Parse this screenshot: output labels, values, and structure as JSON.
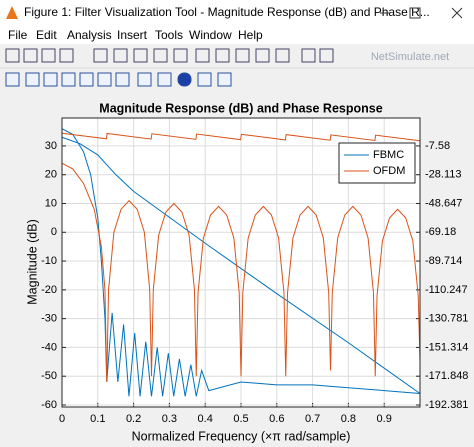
{
  "window": {
    "title": "Figure 1: Filter Visualization Tool - Magnitude Response (dB) and Phase R...",
    "menu": [
      "File",
      "Edit",
      "Analysis",
      "Insert",
      "Tools",
      "Window",
      "Help"
    ],
    "watermark": "NetSimulate.net"
  },
  "chart_data": {
    "type": "line",
    "title": "Magnitude Response (dB) and Phase Response",
    "xlabel": "Normalized Frequency (×π rad/sample)",
    "ylabel": "Magnitude (dB)",
    "xlim": [
      0,
      1
    ],
    "xticks": [
      0,
      0.1,
      0.2,
      0.3,
      0.4,
      0.5,
      0.6,
      0.7,
      0.8,
      0.9
    ],
    "ylim": [
      -60.7,
      39.7
    ],
    "yticks": [
      30,
      20,
      10,
      0,
      -10,
      -20,
      -30,
      -40,
      -50,
      -60
    ],
    "y2lim": [
      -193.82,
      12.34
    ],
    "y2ticks": [
      -7.58,
      -28.113,
      -48.647,
      -69.18,
      -89.714,
      -110.247,
      -130.781,
      -151.314,
      -171.848,
      -192.381
    ],
    "grid": true,
    "legend": "upper right",
    "series": [
      {
        "name": "FBMC",
        "color": "#0072bd",
        "x": [
          0,
          0.03,
          0.06,
          0.08,
          0.1,
          0.11,
          0.12,
          0.125,
          0.14,
          0.156,
          0.172,
          0.187,
          0.203,
          0.218,
          0.234,
          0.25,
          0.266,
          0.281,
          0.297,
          0.312,
          0.328,
          0.344,
          0.36,
          0.375,
          0.39,
          0.41,
          0.5,
          0.6,
          0.7,
          0.8,
          0.9,
          1
        ],
        "values": [
          36,
          34,
          28,
          20,
          5,
          -10,
          -30,
          -52,
          -28,
          -52,
          -32,
          -57,
          -35,
          -57,
          -38,
          -57,
          -40,
          -57,
          -42,
          -57,
          -44,
          -57,
          -46,
          -57,
          -48,
          -55,
          -52,
          -53,
          -53,
          -54,
          -55,
          -56
        ],
        "phase_x": [
          0,
          0.05,
          0.1,
          0.15,
          0.2,
          0.4,
          0.6,
          0.8,
          1
        ],
        "phase_values": [
          -1.4,
          -6,
          -14,
          -28,
          -40,
          -77,
          -113,
          -148,
          -184.2
        ]
      },
      {
        "name": "OFDM",
        "color": "#d95319",
        "x": [
          0,
          0.03,
          0.06,
          0.09,
          0.11,
          0.12,
          0.125,
          0.13,
          0.145,
          0.165,
          0.1875,
          0.21,
          0.23,
          0.245,
          0.25,
          0.255,
          0.27,
          0.29,
          0.3125,
          0.335,
          0.355,
          0.37,
          0.375,
          0.38,
          0.395,
          0.415,
          0.4375,
          0.46,
          0.48,
          0.495,
          0.5,
          0.505,
          0.52,
          0.54,
          0.5625,
          0.585,
          0.605,
          0.62,
          0.625,
          0.63,
          0.645,
          0.665,
          0.6875,
          0.71,
          0.73,
          0.745,
          0.75,
          0.755,
          0.77,
          0.79,
          0.8125,
          0.835,
          0.855,
          0.87,
          0.875,
          0.88,
          0.895,
          0.915,
          0.9375,
          0.96,
          0.98,
          0.995,
          1
        ],
        "values": [
          24,
          22,
          17,
          8,
          -5,
          -20,
          -52,
          -20,
          0,
          8,
          11,
          8,
          0,
          -20,
          -50,
          -20,
          -1,
          7,
          10,
          7,
          -1,
          -20,
          -50,
          -21,
          -2,
          6,
          9,
          6,
          -2,
          -21,
          -50,
          -21,
          -2,
          6,
          9,
          6,
          -2,
          -21,
          -50,
          -21,
          -2,
          6,
          9,
          6,
          -2,
          -21,
          -48,
          -21,
          -2,
          6,
          9,
          6,
          -2,
          -21,
          -50,
          -22,
          -3,
          5,
          8,
          5,
          -3,
          -22,
          -45
        ],
        "phase_x": [
          0,
          0.124,
          0.126,
          0.249,
          0.251,
          0.374,
          0.376,
          0.499,
          0.501,
          0.624,
          0.626,
          0.749,
          0.751,
          0.874,
          0.876,
          1
        ],
        "phase_values": [
          1.5,
          -2.5,
          1.3,
          -2.7,
          1.1,
          -2.9,
          0.9,
          -3.1,
          0.7,
          -3.3,
          0.5,
          -3.5,
          0.3,
          -3.7,
          0.1,
          -3.9
        ]
      }
    ]
  }
}
